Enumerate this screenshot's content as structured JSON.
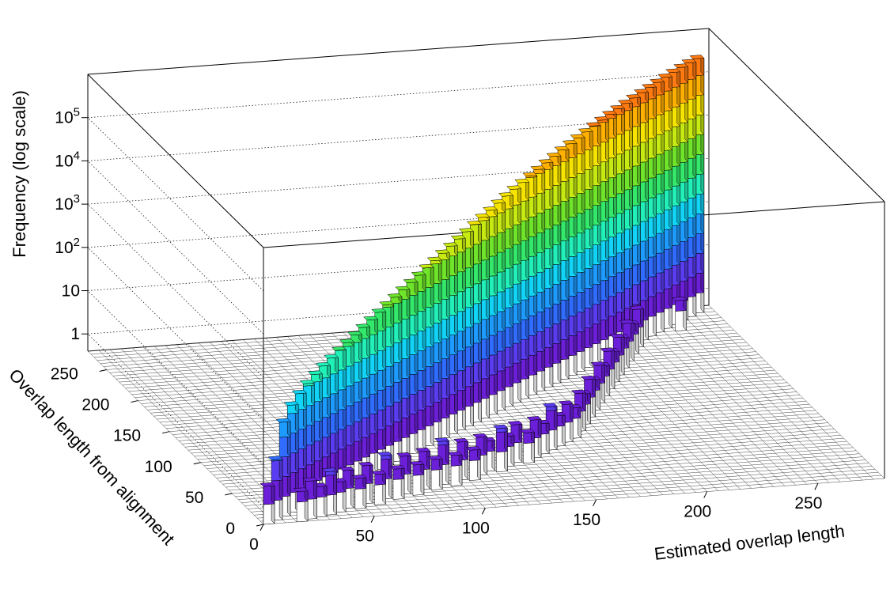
{
  "chart_data": {
    "type": "lego3d",
    "title": "",
    "xlabel": "Estimated overlap length",
    "ylabel": "Overlap length from alignment",
    "zlabel": "Frequency (log scale)",
    "zscale": "log",
    "xlim": [
      0,
      280
    ],
    "ylim": [
      0,
      280
    ],
    "zlim": [
      0.4,
      1000000
    ],
    "x_ticks": [
      "0",
      "50",
      "100",
      "150",
      "200",
      "250"
    ],
    "y_ticks": [
      "0",
      "50",
      "100",
      "150",
      "200",
      "250"
    ],
    "z_ticks": [
      "1",
      "10",
      "10^2",
      "10^3",
      "10^4",
      "10^5"
    ],
    "bin_width": 5,
    "color_palette": [
      "#ffffff",
      "#6b1fd8",
      "#5a3df0",
      "#2f6cff",
      "#1e9bff",
      "#11d4f7",
      "#22f0b9",
      "#33e86a",
      "#6fe42a",
      "#c7ea12",
      "#f6e400",
      "#ffb000",
      "#ff7a10",
      "#ff3a00"
    ],
    "diagonal_series": {
      "name": "",
      "x": [
        5,
        10,
        15,
        20,
        25,
        30,
        35,
        40,
        45,
        50,
        55,
        60,
        65,
        70,
        75,
        80,
        85,
        90,
        95,
        100,
        105,
        110,
        115,
        120,
        125,
        130,
        135,
        140,
        145,
        150,
        155,
        160,
        165,
        170,
        175,
        180,
        185,
        190,
        195,
        200,
        205,
        210,
        215,
        220,
        225,
        230,
        235,
        240,
        245,
        250,
        255,
        260,
        265,
        270,
        275
      ],
      "values": [
        3,
        10,
        60,
        120,
        180,
        250,
        330,
        420,
        520,
        640,
        780,
        950,
        1150,
        1400,
        1700,
        2050,
        2500,
        3000,
        3600,
        4300,
        5200,
        6200,
        7400,
        8800,
        10500,
        12500,
        15000,
        17800,
        21000,
        25000,
        29500,
        34500,
        40000,
        46000,
        53000,
        61000,
        70000,
        80000,
        90000,
        100000,
        112000,
        125000,
        138000,
        152000,
        166000,
        180000,
        195000,
        210000,
        225000,
        240000,
        255000,
        270000,
        285000,
        295000,
        300000
      ]
    },
    "scattered_bins": [
      [
        20,
        5,
        2
      ],
      [
        25,
        8,
        3
      ],
      [
        30,
        10,
        2
      ],
      [
        35,
        12,
        4
      ],
      [
        40,
        15,
        2
      ],
      [
        45,
        20,
        3
      ],
      [
        50,
        18,
        2
      ],
      [
        55,
        25,
        3
      ],
      [
        60,
        22,
        2
      ],
      [
        65,
        30,
        4
      ],
      [
        70,
        28,
        2
      ],
      [
        75,
        35,
        3
      ],
      [
        80,
        32,
        2
      ],
      [
        85,
        40,
        3
      ],
      [
        90,
        38,
        2
      ],
      [
        95,
        45,
        4
      ],
      [
        100,
        42,
        2
      ],
      [
        105,
        50,
        3
      ],
      [
        110,
        48,
        2
      ],
      [
        115,
        55,
        3
      ],
      [
        120,
        60,
        2
      ],
      [
        125,
        58,
        4
      ],
      [
        130,
        65,
        2
      ],
      [
        135,
        70,
        3
      ],
      [
        140,
        68,
        2
      ],
      [
        145,
        75,
        3
      ],
      [
        150,
        80,
        2
      ],
      [
        155,
        85,
        4
      ],
      [
        160,
        90,
        2
      ],
      [
        165,
        95,
        3
      ],
      [
        170,
        100,
        2
      ],
      [
        175,
        110,
        3
      ],
      [
        180,
        120,
        2
      ],
      [
        185,
        130,
        3
      ],
      [
        190,
        140,
        2
      ],
      [
        195,
        150,
        3
      ],
      [
        200,
        160,
        2
      ],
      [
        205,
        170,
        3
      ],
      [
        210,
        180,
        2
      ],
      [
        215,
        190,
        3
      ],
      [
        220,
        200,
        2
      ],
      [
        225,
        210,
        3
      ],
      [
        230,
        220,
        2
      ],
      [
        235,
        230,
        3
      ],
      [
        240,
        245,
        2
      ],
      [
        245,
        250,
        3
      ],
      [
        250,
        255,
        2
      ],
      [
        255,
        260,
        2
      ],
      [
        260,
        250,
        2
      ],
      [
        30,
        40,
        2
      ],
      [
        40,
        60,
        2
      ],
      [
        60,
        80,
        3
      ],
      [
        70,
        90,
        2
      ],
      [
        80,
        110,
        2
      ],
      [
        90,
        120,
        3
      ],
      [
        100,
        130,
        2
      ],
      [
        110,
        140,
        2
      ],
      [
        120,
        150,
        3
      ],
      [
        130,
        160,
        2
      ],
      [
        140,
        170,
        2
      ],
      [
        150,
        180,
        3
      ],
      [
        160,
        190,
        2
      ],
      [
        170,
        200,
        2
      ],
      [
        180,
        210,
        3
      ],
      [
        190,
        220,
        2
      ],
      [
        200,
        230,
        2
      ],
      [
        210,
        240,
        3
      ],
      [
        220,
        250,
        2
      ],
      [
        230,
        255,
        2
      ],
      [
        45,
        70,
        2
      ],
      [
        55,
        90,
        2
      ],
      [
        65,
        100,
        2
      ],
      [
        75,
        120,
        2
      ],
      [
        85,
        130,
        2
      ],
      [
        95,
        150,
        2
      ],
      [
        105,
        160,
        2
      ],
      [
        115,
        175,
        2
      ],
      [
        125,
        185,
        2
      ],
      [
        135,
        200,
        2
      ],
      [
        145,
        210,
        2
      ],
      [
        155,
        220,
        2
      ],
      [
        165,
        230,
        2
      ],
      [
        175,
        240,
        2
      ],
      [
        185,
        245,
        2
      ],
      [
        195,
        250,
        2
      ]
    ]
  }
}
